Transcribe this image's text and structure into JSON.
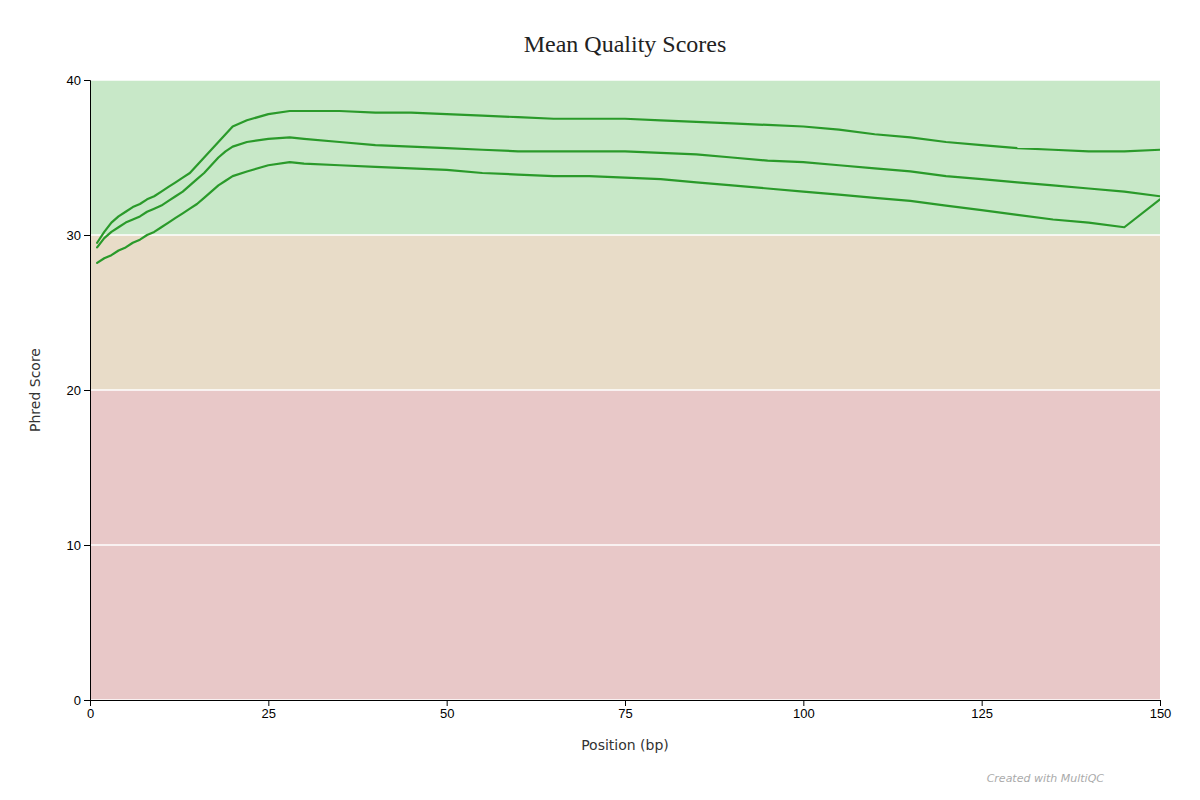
{
  "chart_data": {
    "type": "line",
    "title": "Mean Quality Scores",
    "x_label": "Position (bp)",
    "y_label": "Phred Score",
    "annotations": [
      "Created with MultiQC"
    ],
    "xlim": [
      0,
      150
    ],
    "ylim": [
      0,
      40
    ],
    "xticks": [
      0,
      25,
      50,
      75,
      100,
      125,
      150
    ],
    "yticks": [
      0,
      10,
      20,
      30,
      40
    ],
    "grid": true,
    "zones": [
      {
        "from": 0,
        "to": 20,
        "color": "#e8c8c8"
      },
      {
        "from": 20,
        "to": 30,
        "color": "#e8dcc8"
      },
      {
        "from": 30,
        "to": 40,
        "color": "#c8e8c8"
      }
    ],
    "x": [
      1,
      2,
      3,
      4,
      5,
      6,
      7,
      8,
      9,
      10,
      11,
      12,
      13,
      14,
      15,
      16,
      17,
      18,
      19,
      20,
      22,
      25,
      28,
      30,
      35,
      40,
      45,
      50,
      55,
      60,
      65,
      70,
      75,
      80,
      85,
      90,
      95,
      100,
      105,
      110,
      115,
      120,
      125,
      130,
      135,
      140,
      145,
      150
    ],
    "series": [
      {
        "color": "#2a9a2a",
        "values": [
          29.5,
          30.2,
          30.8,
          31.2,
          31.5,
          31.8,
          32.0,
          32.3,
          32.5,
          32.8,
          33.1,
          33.4,
          33.7,
          34.0,
          34.5,
          35.0,
          35.5,
          36.0,
          36.5,
          37.0,
          37.4,
          37.8,
          38.0,
          38.0,
          38.0,
          37.9,
          37.9,
          37.8,
          37.7,
          37.6,
          37.5,
          37.5,
          37.5,
          37.4,
          37.3,
          37.2,
          37.1,
          37.0,
          36.8,
          36.5,
          36.3,
          36.0,
          35.8,
          35.6,
          35.5,
          35.4,
          35.4,
          35.5
        ]
      },
      {
        "color": "#2a9a2a",
        "values": [
          29.2,
          29.8,
          30.2,
          30.5,
          30.8,
          31.0,
          31.2,
          31.5,
          31.7,
          31.9,
          32.2,
          32.5,
          32.8,
          33.2,
          33.6,
          34.0,
          34.5,
          35.0,
          35.4,
          35.7,
          36.0,
          36.2,
          36.3,
          36.2,
          36.0,
          35.8,
          35.7,
          35.6,
          35.5,
          35.4,
          35.4,
          35.4,
          35.4,
          35.3,
          35.2,
          35.0,
          34.8,
          34.7,
          34.5,
          34.3,
          34.1,
          33.8,
          33.6,
          33.4,
          33.2,
          33.0,
          32.8,
          32.5
        ]
      },
      {
        "color": "#2a9a2a",
        "values": [
          28.2,
          28.5,
          28.7,
          29.0,
          29.2,
          29.5,
          29.7,
          30.0,
          30.2,
          30.5,
          30.8,
          31.1,
          31.4,
          31.7,
          32.0,
          32.4,
          32.8,
          33.2,
          33.5,
          33.8,
          34.1,
          34.5,
          34.7,
          34.6,
          34.5,
          34.4,
          34.3,
          34.2,
          34.0,
          33.9,
          33.8,
          33.8,
          33.7,
          33.6,
          33.4,
          33.2,
          33.0,
          32.8,
          32.6,
          32.4,
          32.2,
          31.9,
          31.6,
          31.3,
          31.0,
          30.8,
          30.5,
          32.3
        ]
      }
    ]
  }
}
